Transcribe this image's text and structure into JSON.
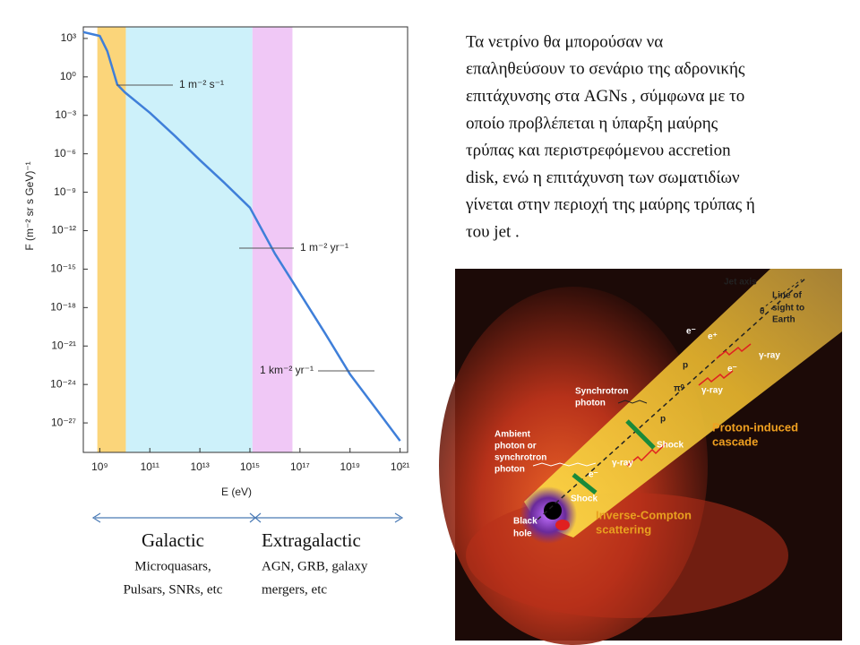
{
  "chart_data": {
    "type": "line",
    "xlabel": "E (eV)",
    "ylabel": "F (m⁻² sr s GeV)⁻¹",
    "xscale": "log",
    "yscale": "log",
    "xlim": [
      220000000.0,
      2e+21
    ],
    "ylim": [
      5e-30,
      8000
    ],
    "xticks": [
      {
        "value": 1000000000.0,
        "label": "10⁹"
      },
      {
        "value": 100000000000.0,
        "label": "10¹¹"
      },
      {
        "value": 10000000000000.0,
        "label": "10¹³"
      },
      {
        "value": 1000000000000000.0,
        "label": "10¹⁵"
      },
      {
        "value": 1e+17,
        "label": "10¹⁷"
      },
      {
        "value": 1e+19,
        "label": "10¹⁹"
      },
      {
        "value": 1e+21,
        "label": "10²¹"
      }
    ],
    "yticks": [
      {
        "value": 1000,
        "label": "10³"
      },
      {
        "value": 1,
        "label": "10⁰"
      },
      {
        "value": 0.001,
        "label": "10⁻³"
      },
      {
        "value": 1e-06,
        "label": "10⁻⁶"
      },
      {
        "value": 1e-09,
        "label": "10⁻⁹"
      },
      {
        "value": 1e-12,
        "label": "10⁻¹²"
      },
      {
        "value": 1e-15,
        "label": "10⁻¹⁵"
      },
      {
        "value": 1e-18,
        "label": "10⁻¹⁸"
      },
      {
        "value": 1e-21,
        "label": "10⁻²¹"
      },
      {
        "value": 1e-24,
        "label": "10⁻²⁴"
      },
      {
        "value": 1e-27,
        "label": "10⁻²⁷"
      }
    ],
    "x": [
      220000000.0,
      1000000000.0,
      2000000000.0,
      5000000000.0,
      10000000000.0,
      100000000000.0,
      1000000000000.0,
      10000000000000.0,
      100000000000000.0,
      1000000000000000.0,
      1e+16,
      1e+17,
      1e+18,
      1e+19,
      1e+20,
      1e+21
    ],
    "series": [
      {
        "color": "#3f7fd9",
        "values": [
          3162,
          1585,
          100,
          0.25,
          0.063,
          0.0016,
          2.5e-05,
          3.2e-07,
          5e-09,
          6.3e-11,
          1.6e-14,
          1.26e-17,
          1e-20,
          6.3e-24,
          1.6e-26,
          4e-29
        ]
      }
    ],
    "bands": [
      {
        "from": 800000000.0,
        "to": 11000000000.0,
        "color": "#fbd57a"
      },
      {
        "from": 11000000000.0,
        "to": 1260000000000000.0,
        "color": "#cdf1fa"
      },
      {
        "from": 1260000000000000.0,
        "to": 5e+16,
        "color": "#f0c8f6"
      }
    ],
    "annotations": [
      "1 m⁻² s⁻¹",
      "1 m⁻² yr⁻¹",
      "1 km⁻² yr⁻¹"
    ]
  },
  "regions": {
    "galactic": {
      "title": "Galactic",
      "lines": [
        "Microquasars,",
        "Pulsars, SNRs, etc"
      ]
    },
    "extragalactic": {
      "title": "Extragalactic",
      "lines": [
        "AGN, GRB, galaxy",
        "mergers, etc"
      ]
    }
  },
  "paragraph": {
    "lines": [
      "Τα νετρίνο θα μπορούσαν να",
      "επαληθεύσουν το σενάριο της αδρονικής",
      "επιτάχυνσης στα AGNs , σύμφωνα με το",
      "οποίο προβλέπεται η ύπαρξη μαύρης",
      "τρύπας και  περιστρεφόμενου accretion",
      "disk, ενώ η επιτάχυνση των σωματιδίων",
      "γίνεται στην περιοχή της μαύρης τρύπας ή",
      "του jet ."
    ]
  },
  "figure": {
    "labels": [
      "Jet axis",
      "Line of",
      "sight to",
      "Earth",
      "θ",
      "e⁻",
      "e⁺",
      "e⁻",
      "γ-ray",
      "γ-ray",
      "p",
      "Synchrotron",
      "photon",
      "π⁰",
      "p",
      "Proton-induced",
      "cascade",
      "Shock",
      "Ambient",
      "photon or",
      "synchrotron",
      "photon",
      "γ-ray",
      "e⁻",
      "Shock",
      "Black",
      "hole",
      "Inverse-Compton",
      "scattering"
    ]
  }
}
